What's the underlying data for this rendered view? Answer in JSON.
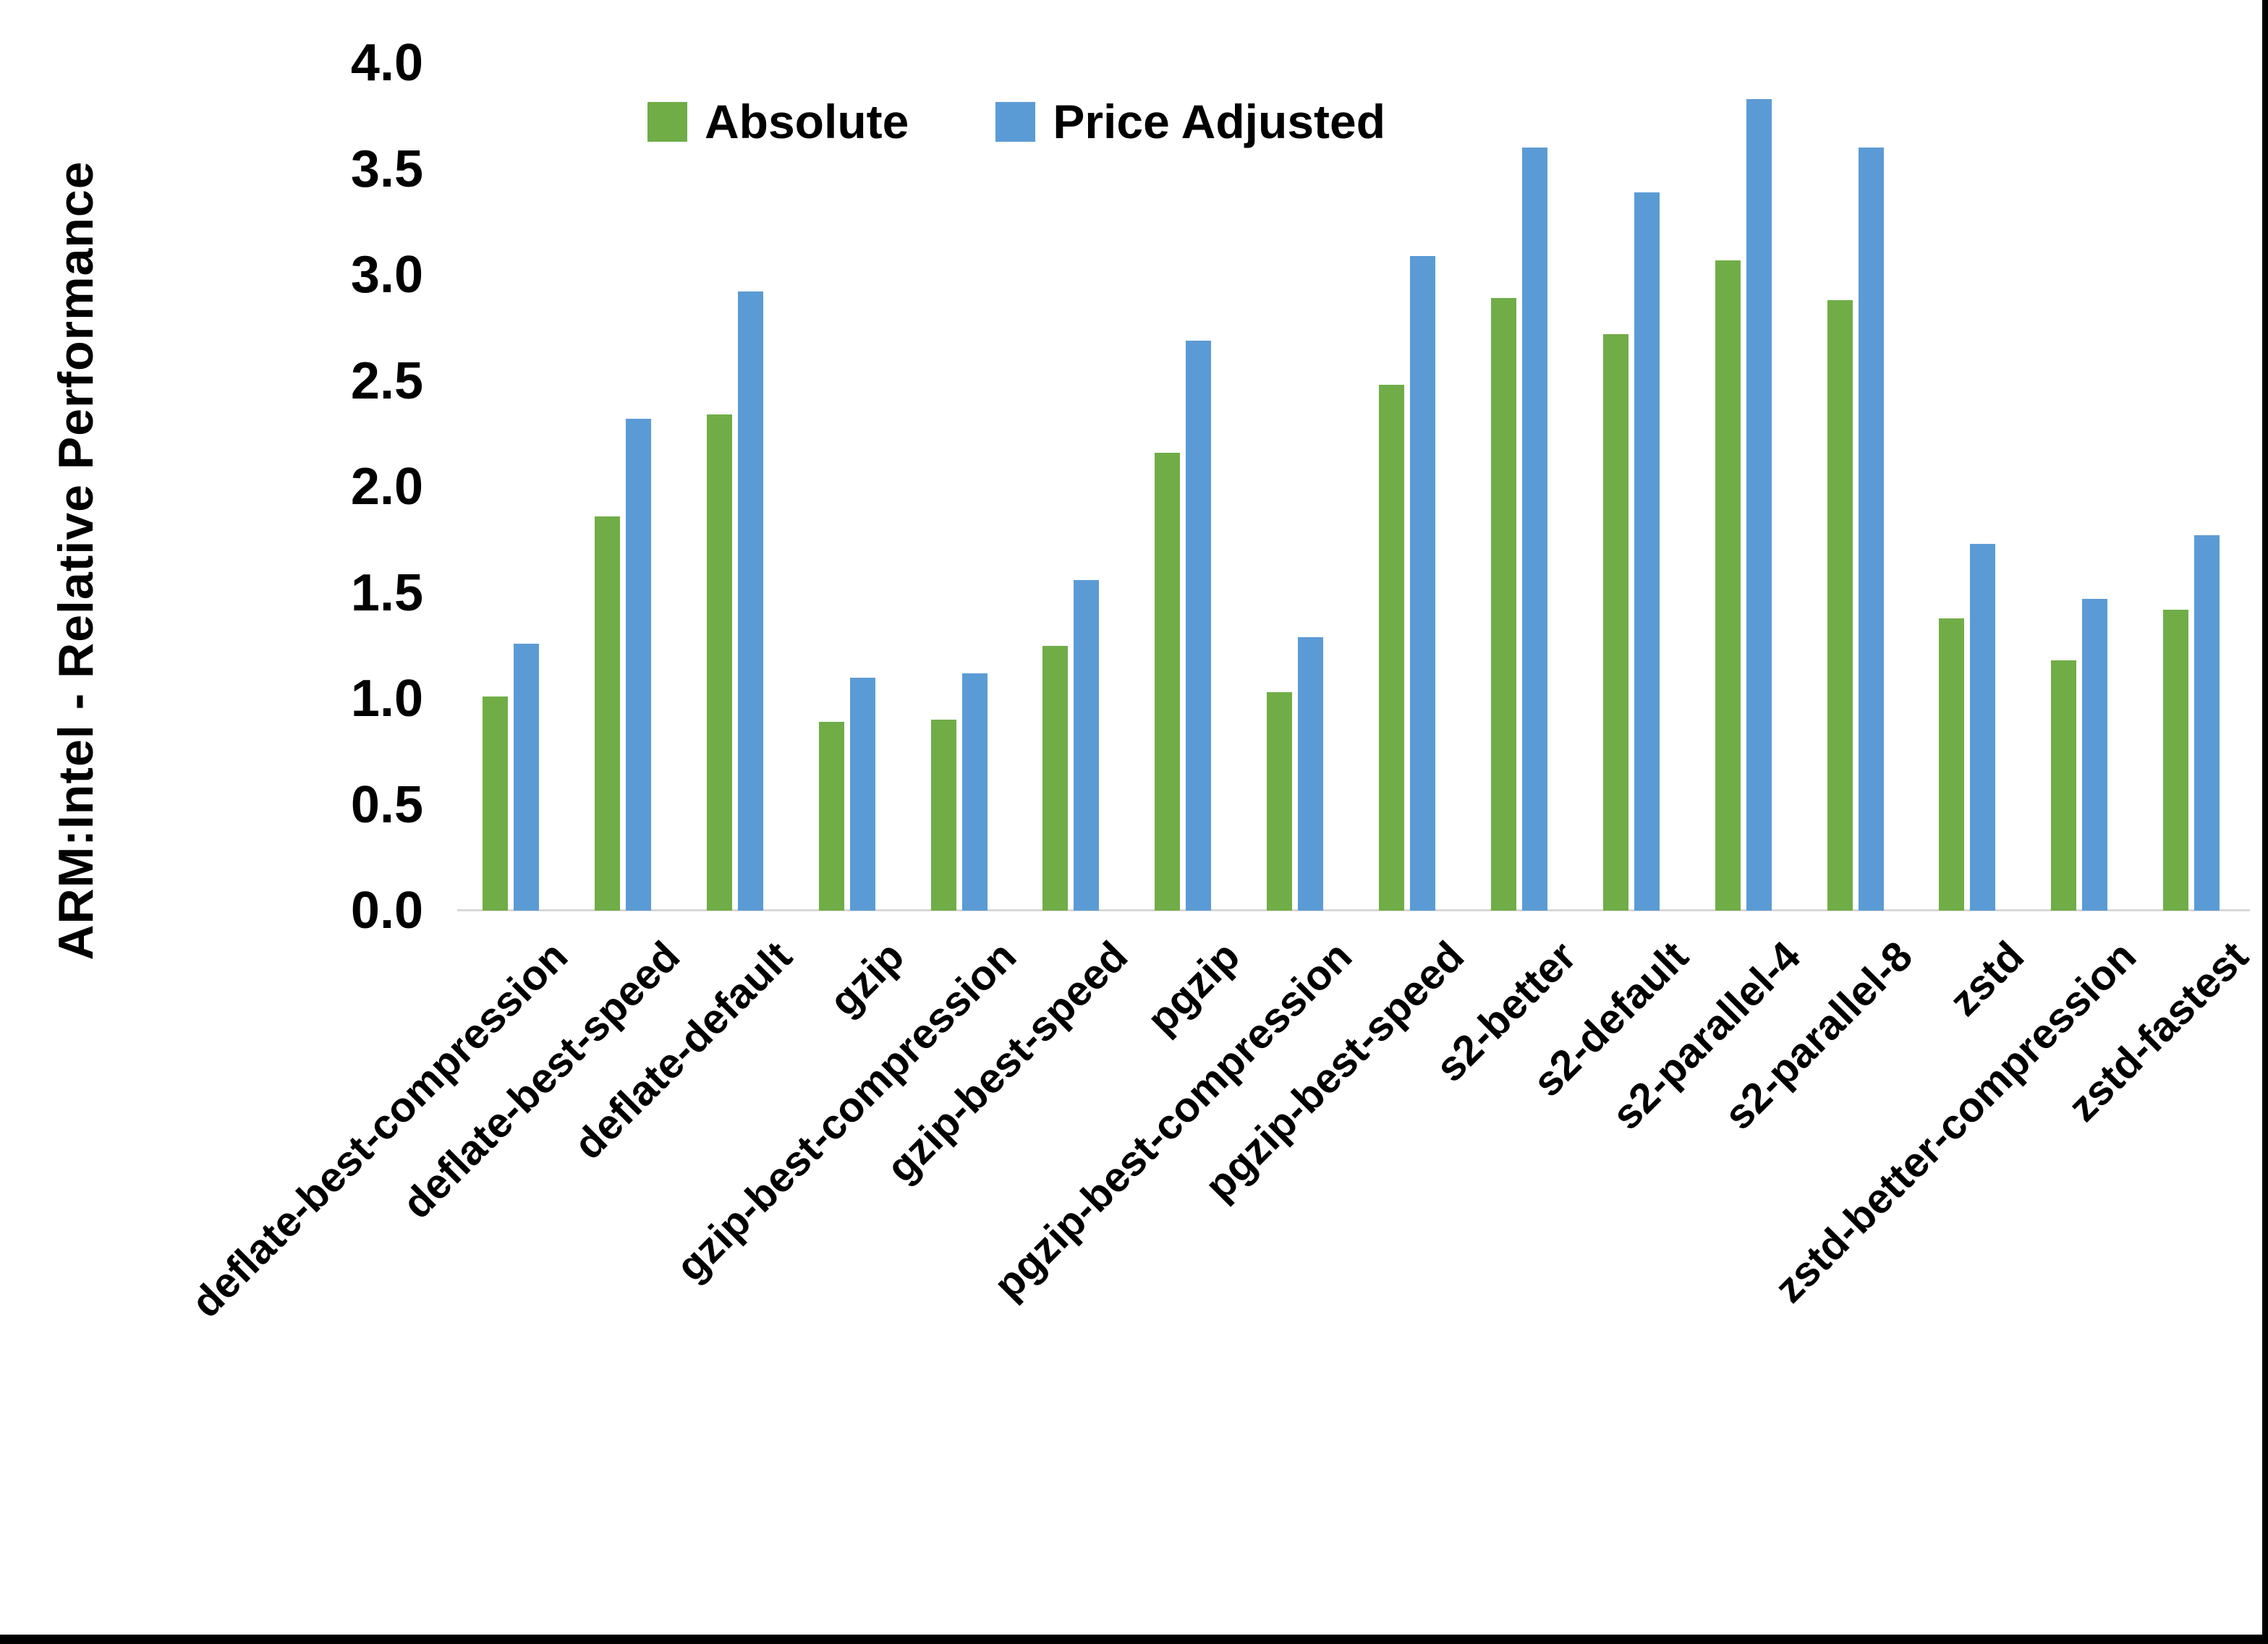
{
  "chart_data": {
    "type": "bar",
    "title": "",
    "xlabel": "",
    "ylabel": "ARM:Intel - Relative Performance",
    "ylim": [
      0.0,
      4.0
    ],
    "ytick_step": 0.5,
    "yticks": [
      "0.0",
      "0.5",
      "1.0",
      "1.5",
      "2.0",
      "2.5",
      "3.0",
      "3.5",
      "4.0"
    ],
    "grid": "off",
    "legend_position": "top-center",
    "categories": [
      "deflate-best-compression",
      "deflate-best-speed",
      "deflate-default",
      "gzip",
      "gzip-best-compression",
      "gzip-best-speed",
      "pgzip",
      "pgzip-best-compression",
      "pgzip-best-speed",
      "s2-better",
      "s2-default",
      "s2-parallel-4",
      "s2-parallel-8",
      "zstd",
      "zstd-better-compression",
      "zstd-fastest"
    ],
    "series": [
      {
        "name": "Absolute",
        "color": "#70AD47",
        "values": [
          1.01,
          1.86,
          2.34,
          0.89,
          0.9,
          1.25,
          2.16,
          1.03,
          2.48,
          2.89,
          2.72,
          3.07,
          2.88,
          1.38,
          1.18,
          1.42
        ]
      },
      {
        "name": "Price Adjusted",
        "color": "#5B9BD5",
        "values": [
          1.26,
          2.32,
          2.92,
          1.1,
          1.12,
          1.56,
          2.69,
          1.29,
          3.09,
          3.6,
          3.39,
          3.83,
          3.6,
          1.73,
          1.47,
          1.77
        ]
      }
    ]
  },
  "colors": {
    "background": "#FFFFFF",
    "axis_line": "#D9D9D9",
    "text": "#000000",
    "frame": "#000000"
  }
}
